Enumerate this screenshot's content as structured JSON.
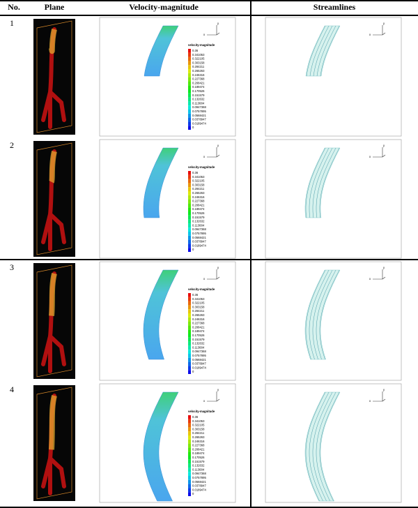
{
  "header": {
    "no": "No.",
    "plane": "Plane",
    "velocity": "Velocity-magnitude",
    "streamlines": "Streamlines"
  },
  "rows": [
    {
      "no": "1"
    },
    {
      "no": "2"
    },
    {
      "no": "3"
    },
    {
      "no": "4"
    }
  ],
  "legend": {
    "title": "velocity-magnitude",
    "labels": [
      "0.36",
      "0.341053",
      "0.322105",
      "0.303158",
      "0.284211",
      "0.265263",
      "0.246316",
      "0.227368",
      "0.208421",
      "0.189474",
      "0.170526",
      "0.151579",
      "0.132632",
      "0.113684",
      "0.0947368",
      "0.0757895",
      "0.0568421",
      "0.0378947",
      "0.0189474",
      "0"
    ]
  },
  "axes": {
    "x": "x",
    "y": "y"
  }
}
